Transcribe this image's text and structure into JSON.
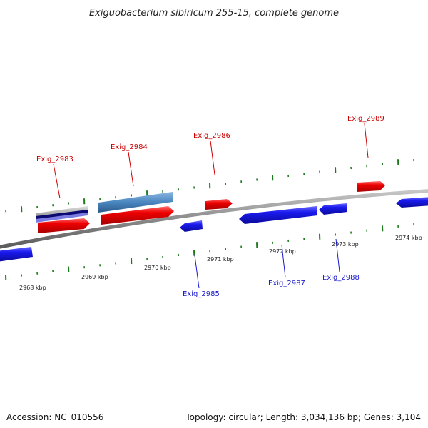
{
  "title": "Exiguobacterium sibiricum 255-15, complete genome",
  "footer": {
    "accession": "Accession: NC_010556",
    "topology": "Topology: circular; Length: 3,034,136 bp; Genes: 3,104"
  },
  "colors": {
    "forward_gene": "#ee0000",
    "reverse_gene": "#1a1aee",
    "other_feature": "#4a86c0",
    "backbone": "#8a8a8a",
    "tick": "#1f7a1f",
    "forward_label": "#cc0000",
    "reverse_label": "#1a1acc"
  },
  "ticks_kbp": [
    "2968 kbp",
    "2969 kbp",
    "2970 kbp",
    "2971 kbp",
    "2972 kbp",
    "2973 kbp",
    "2974 kbp"
  ],
  "gene_labels": [
    {
      "name": "Exig_2983",
      "strand": "forward"
    },
    {
      "name": "Exig_2984",
      "strand": "forward"
    },
    {
      "name": "Exig_2986",
      "strand": "forward"
    },
    {
      "name": "Exig_2989",
      "strand": "forward"
    },
    {
      "name": "Exig_2985",
      "strand": "reverse"
    },
    {
      "name": "Exig_2987",
      "strand": "reverse"
    },
    {
      "name": "Exig_2988",
      "strand": "reverse"
    }
  ]
}
